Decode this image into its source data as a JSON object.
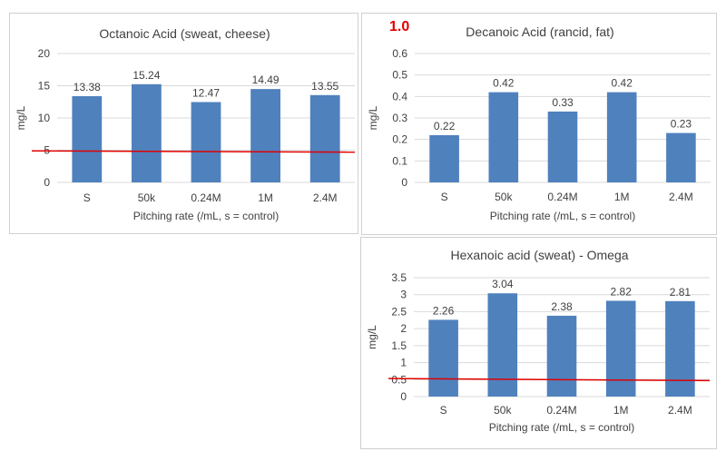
{
  "chart_data": [
    {
      "type": "bar",
      "title": "Octanoic Acid (sweat, cheese)",
      "xlabel": "Pitching rate (/mL, s = control)",
      "ylabel": "mg/L",
      "categories": [
        "S",
        "50k",
        "0.24M",
        "1M",
        "2.4M"
      ],
      "values": [
        13.38,
        15.24,
        12.47,
        14.49,
        13.55
      ],
      "value_labels": [
        "13.38",
        "15.24",
        "12.47",
        "14.49",
        "13.55"
      ],
      "ylim": [
        0,
        20
      ],
      "yticks": [
        0,
        5,
        10,
        15,
        20
      ],
      "ytick_labels": [
        "0",
        "5",
        "10",
        "15",
        "20"
      ],
      "gridlines": true,
      "bar_color": "#4f81bd",
      "threshold": {
        "value_start": 4.9,
        "value_end": 4.7,
        "color": "#e00000"
      }
    },
    {
      "type": "bar",
      "title": "Decanoic Acid  (rancid, fat)",
      "xlabel": "Pitching rate (/mL, s = control)",
      "ylabel": "mg/L",
      "annotation": "1.0",
      "annotation_color": "#e00000",
      "categories": [
        "S",
        "50k",
        "0.24M",
        "1M",
        "2.4M"
      ],
      "values": [
        0.22,
        0.42,
        0.33,
        0.42,
        0.23
      ],
      "value_labels": [
        "0.22",
        "0.42",
        "0.33",
        "0.42",
        "0.23"
      ],
      "ylim": [
        0,
        0.6
      ],
      "yticks": [
        0,
        0.1,
        0.2,
        0.3,
        0.4,
        0.5,
        0.6
      ],
      "ytick_labels": [
        "0",
        "0.1",
        "0.2",
        "0.3",
        "0.4",
        "0.5",
        "0.6"
      ],
      "gridlines": true,
      "bar_color": "#4f81bd"
    },
    {
      "type": "bar",
      "title": "Hexanoic acid (sweat) - Omega",
      "xlabel": "Pitching rate (/mL, s = control)",
      "ylabel": "mg/L",
      "categories": [
        "S",
        "50k",
        "0.24M",
        "1M",
        "2.4M"
      ],
      "values": [
        2.26,
        3.04,
        2.38,
        2.82,
        2.81
      ],
      "value_labels": [
        "2.26",
        "3.04",
        "2.38",
        "2.82",
        "2.81"
      ],
      "ylim": [
        0,
        3.5
      ],
      "yticks": [
        0,
        0.5,
        1,
        1.5,
        2,
        2.5,
        3,
        3.5
      ],
      "ytick_labels": [
        "0",
        "0.5",
        "1",
        "1.5",
        "2",
        "2.5",
        "3",
        "3.5"
      ],
      "gridlines": true,
      "bar_color": "#4f81bd",
      "threshold": {
        "value_start": 0.53,
        "value_end": 0.47,
        "color": "#e00000"
      }
    }
  ]
}
